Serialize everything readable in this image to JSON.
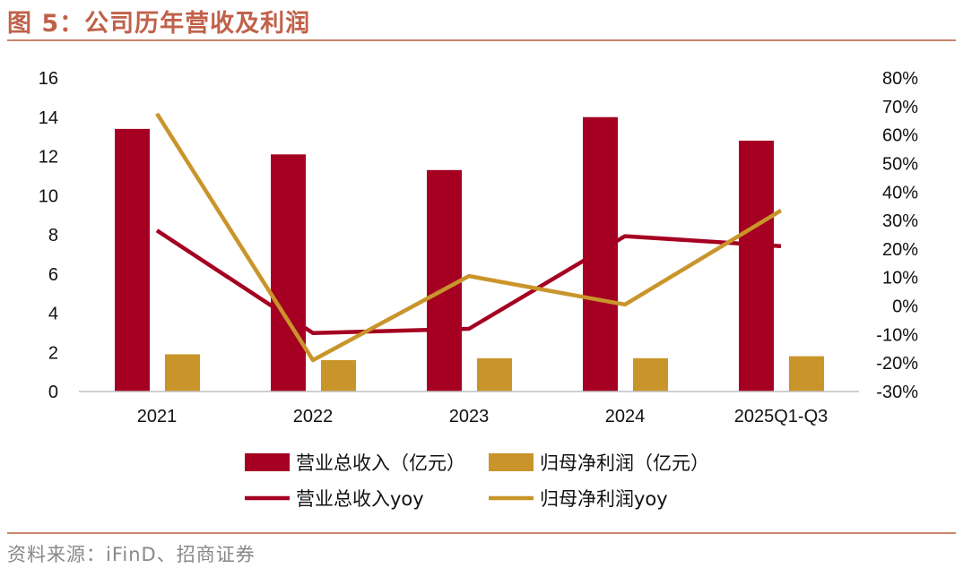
{
  "title": "图 5：公司历年营收及利润",
  "source": "资料来源：iFinD、招商证券",
  "colors": {
    "revenue": "#a50021",
    "profit": "#c9952b",
    "accent": "#c0614a"
  },
  "chart_data": {
    "type": "bar",
    "categories": [
      "2021",
      "2022",
      "2023",
      "2024",
      "2025Q1-Q3"
    ],
    "y_left": {
      "ylim": [
        0,
        16
      ],
      "ticks": [
        "0",
        "2",
        "4",
        "6",
        "8",
        "10",
        "12",
        "14",
        "16"
      ]
    },
    "y_right": {
      "ylim": [
        -30,
        80
      ],
      "ticks": [
        "-30%",
        "-20%",
        "-10%",
        "0%",
        "10%",
        "20%",
        "30%",
        "40%",
        "50%",
        "60%",
        "70%",
        "80%"
      ]
    },
    "series": [
      {
        "name": "营业总收入（亿元）",
        "kind": "bar",
        "axis": "left",
        "values": [
          13.4,
          12.1,
          11.3,
          14.0,
          12.8
        ]
      },
      {
        "name": "归母净利润（亿元）",
        "kind": "bar",
        "axis": "left",
        "values": [
          1.9,
          1.6,
          1.7,
          1.7,
          1.8
        ]
      },
      {
        "name": "营业总收入yoy",
        "kind": "line",
        "axis": "right",
        "values": [
          26.5,
          -9.5,
          -8.0,
          24.5,
          21.0
        ]
      },
      {
        "name": "归母净利润yoy",
        "kind": "line",
        "axis": "right",
        "values": [
          67.5,
          -19.0,
          10.5,
          0.5,
          33.5
        ]
      }
    ]
  }
}
